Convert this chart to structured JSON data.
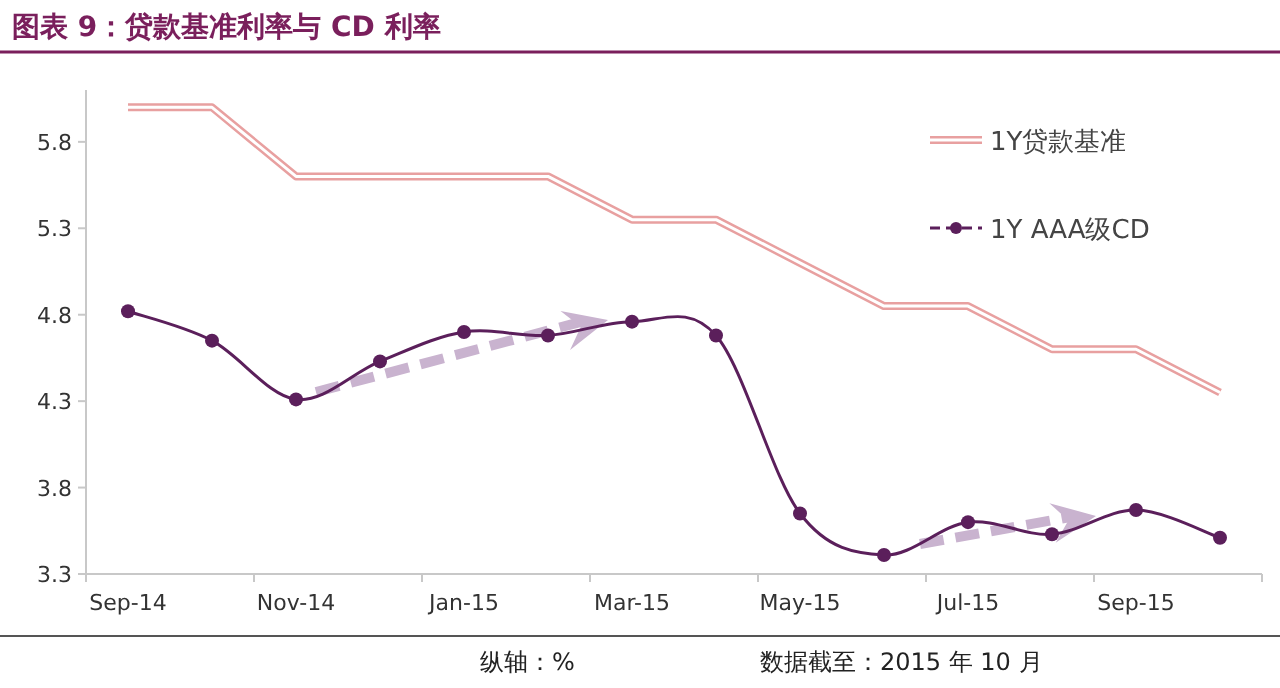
{
  "chart_data": {
    "type": "line",
    "title": "图表 9：贷款基准利率与 CD 利率",
    "categories": [
      "Sep-14",
      null,
      "Nov-14",
      null,
      "Jan-15",
      null,
      "Mar-15",
      null,
      "May-15",
      null,
      "Jul-15",
      null,
      "Sep-15",
      null
    ],
    "series": [
      {
        "name": "1Y贷款基准",
        "color": "#e8a0a0",
        "line_style": "solid",
        "marker": "none",
        "values": [
          6.0,
          6.0,
          5.6,
          5.6,
          5.6,
          5.6,
          5.35,
          5.35,
          5.1,
          4.85,
          4.85,
          4.6,
          4.6,
          4.35
        ]
      },
      {
        "name": "1Y AAA级CD",
        "color": "#5b1f5b",
        "line_style": "solid",
        "marker": "circle",
        "values": [
          4.82,
          4.65,
          4.31,
          4.53,
          4.7,
          4.68,
          4.76,
          4.68,
          3.65,
          3.41,
          3.6,
          3.53,
          3.67,
          3.51
        ]
      }
    ],
    "ylim": [
      3.3,
      6.1
    ],
    "yticks": [
      3.3,
      3.8,
      4.3,
      4.8,
      5.3,
      5.8
    ],
    "grid": false,
    "legend": "top right",
    "annotations": [
      "纵轴：%",
      "数据截至：2015 年 10 月"
    ]
  }
}
